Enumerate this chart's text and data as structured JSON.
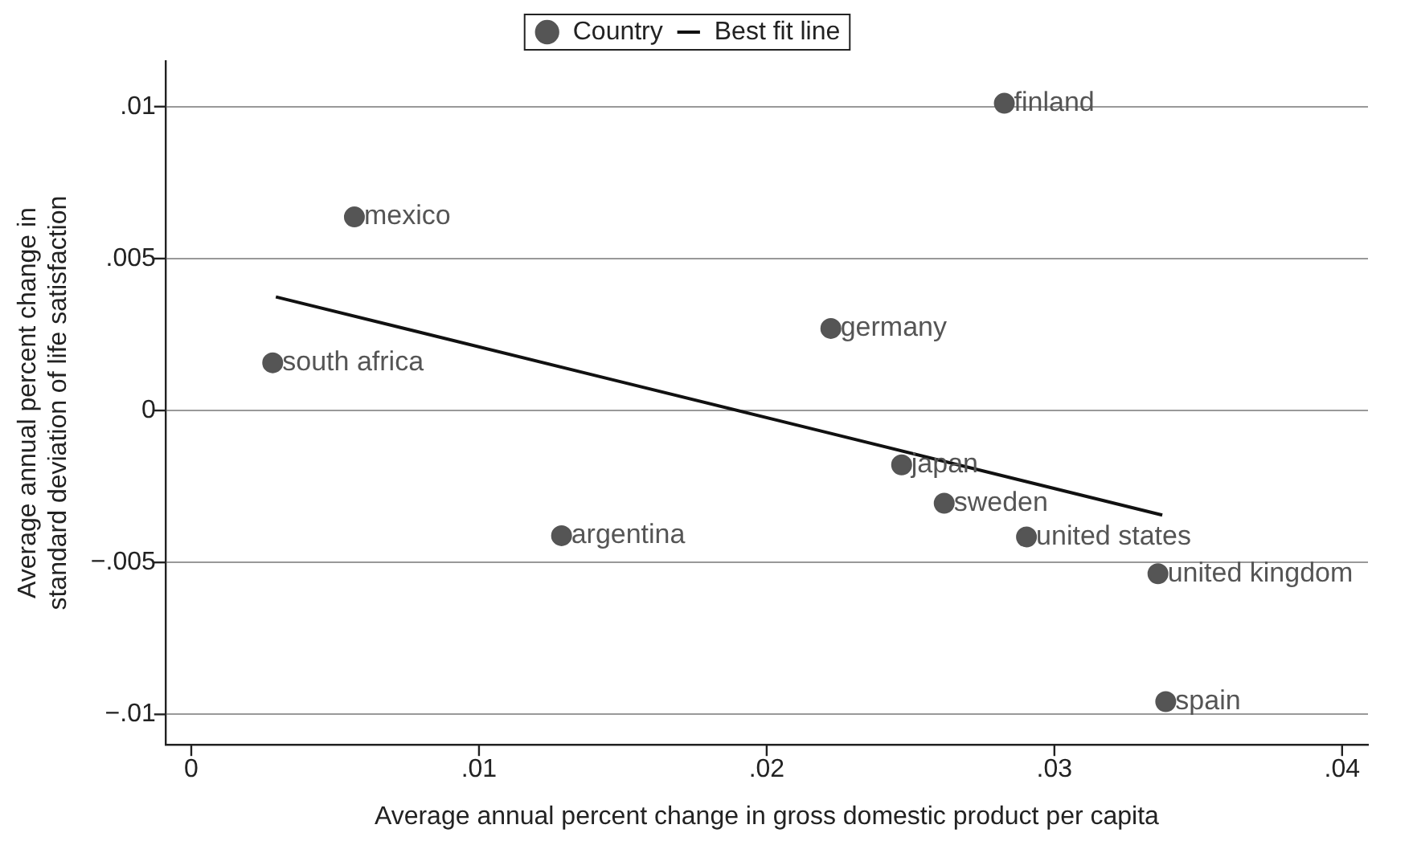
{
  "chart_data": {
    "type": "scatter",
    "xlabel": "Average annual percent change in gross domestic product per capita",
    "ylabel": "Average annual percent change in\nstandard deviation of life satisfaction",
    "xlim": [
      -0.0009,
      0.0409
    ],
    "xticks": [
      0,
      {
        "value": 0.01,
        "label": ".01"
      },
      {
        "value": 0.02,
        "label": ".02"
      },
      {
        "value": 0.03,
        "label": ".03"
      },
      {
        "value": 0.04,
        "label": ".04"
      }
    ],
    "ylim": [
      -0.011,
      0.0115
    ],
    "yticks": [
      {
        "value": -0.01,
        "label": "−.01"
      },
      {
        "value": -0.005,
        "label": "−.005"
      },
      0,
      {
        "value": 0.005,
        "label": ".005"
      },
      {
        "value": 0.01,
        "label": ".01"
      }
    ],
    "grid": "y",
    "legend": "top",
    "marker": "circle",
    "series": [
      {
        "name": "Country",
        "color": "#555555",
        "x": [
          0.00567,
          0.00283,
          0.01287,
          0.02826,
          0.02223,
          0.02469,
          0.02617,
          0.02903,
          0.0336,
          0.03387
        ],
        "values": [
          0.00637,
          0.00157,
          -0.00412,
          0.01011,
          0.0027,
          -0.00179,
          -0.00305,
          -0.00416,
          -0.00537,
          -0.00958
        ]
      },
      {
        "name": "Best fit line",
        "type": "line",
        "color": "#111111",
        "marker": "none",
        "x": [
          0.00294,
          0.03375
        ],
        "values": [
          0.00374,
          -0.00344
        ]
      }
    ],
    "annotations": [
      {
        "text": "mexico",
        "x": 0.00567,
        "y": 0.00637
      },
      {
        "text": "south africa",
        "x": 0.00283,
        "y": 0.00157
      },
      {
        "text": "argentina",
        "x": 0.01287,
        "y": -0.00412
      },
      {
        "text": "finland",
        "x": 0.02826,
        "y": 0.01011
      },
      {
        "text": "germany",
        "x": 0.02223,
        "y": 0.0027
      },
      {
        "text": "japan",
        "x": 0.02469,
        "y": -0.00179
      },
      {
        "text": "sweden",
        "x": 0.02617,
        "y": -0.00305
      },
      {
        "text": "united states",
        "x": 0.02903,
        "y": -0.00416
      },
      {
        "text": "united kingdom",
        "x": 0.0336,
        "y": -0.00537
      },
      {
        "text": "spain",
        "x": 0.03387,
        "y": -0.00958
      }
    ]
  }
}
